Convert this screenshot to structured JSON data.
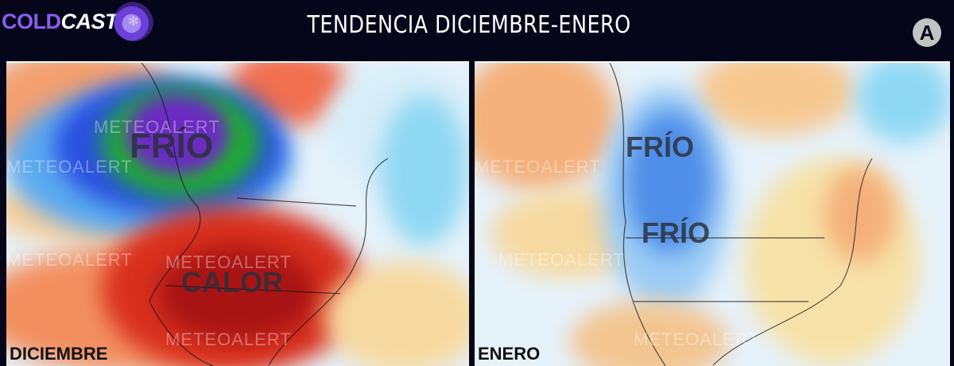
{
  "header": {
    "logo_part1": "COLD",
    "logo_part2": "CAST",
    "title": "TENDENCIA DICIEMBRE-ENERO",
    "brand_icon": "A"
  },
  "watermark": "METEOALERT",
  "maps": [
    {
      "month": "DICIEMBRE",
      "labels": [
        "FRÍO",
        "CALOR"
      ]
    },
    {
      "month": "ENERO",
      "labels": [
        "FRÍO",
        "FRÍO"
      ]
    }
  ],
  "colors": {
    "background": "#05061a",
    "logo_accent": "#8a5cf0",
    "cold": "#3a7bea",
    "warm": "#d42a1e"
  }
}
